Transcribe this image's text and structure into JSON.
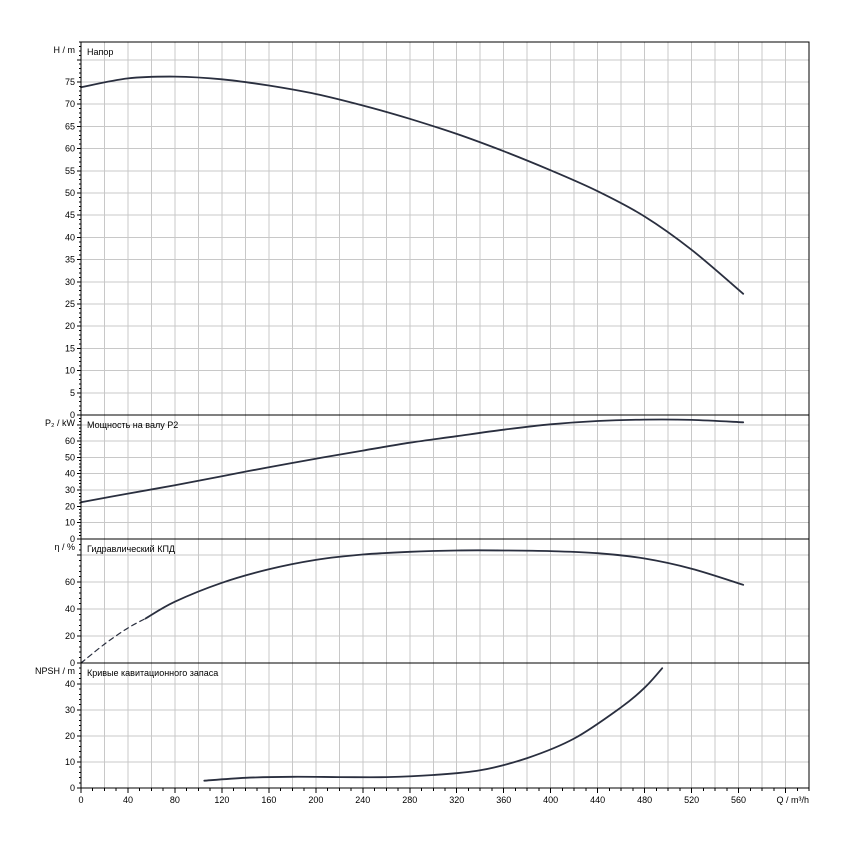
{
  "chart_data": {
    "type": "line",
    "xlabel": "Q / m³/h",
    "xlim": [
      0,
      620
    ],
    "xticks": [
      0,
      40,
      80,
      120,
      160,
      200,
      240,
      280,
      320,
      360,
      400,
      440,
      480,
      520,
      560
    ],
    "grid": true,
    "panels": [
      {
        "id": "head",
        "title": "Напор",
        "ylabel": "H / m",
        "ylim": [
          0,
          84
        ],
        "yticks": [
          0,
          5,
          10,
          15,
          20,
          25,
          30,
          35,
          40,
          45,
          50,
          55,
          60,
          65,
          70,
          75
        ],
        "series": [
          {
            "x": [
              0,
              40,
              80,
              120,
              160,
              200,
              240,
              280,
              320,
              360,
              400,
              440,
              480,
              520,
              564
            ],
            "y": [
              73.8,
              75.8,
              76.2,
              75.6,
              74.2,
              72.3,
              69.7,
              66.7,
              63.3,
              59.4,
              55.1,
              50.4,
              44.7,
              37.2,
              27.3
            ]
          }
        ]
      },
      {
        "id": "power",
        "title": "Мощность на валу P2",
        "ylabel": "P₂ / kW",
        "ylim": [
          0,
          76
        ],
        "yticks": [
          0,
          10,
          20,
          30,
          40,
          50,
          60
        ],
        "series": [
          {
            "x": [
              0,
              40,
              80,
              120,
              160,
              200,
              240,
              280,
              320,
              360,
              400,
              440,
              480,
              520,
              564
            ],
            "y": [
              22.5,
              27.8,
              33.0,
              38.5,
              44.0,
              49.2,
              54.2,
              59.0,
              63.0,
              67.0,
              70.3,
              72.3,
              73.2,
              73.0,
              71.5
            ]
          }
        ]
      },
      {
        "id": "efficiency",
        "title": "Гидравлический КПД",
        "ylabel": "η / %",
        "ylim": [
          0,
          92
        ],
        "yticks": [
          0,
          20,
          40,
          60
        ],
        "series": [
          {
            "style": "dashed",
            "x": [
              0,
              20,
              40,
              55
            ],
            "y": [
              0,
              14,
              26,
              33
            ]
          },
          {
            "x": [
              55,
              80,
              120,
              160,
              200,
              240,
              280,
              320,
              360,
              400,
              440,
              480,
              520,
              564
            ],
            "y": [
              33,
              45.5,
              59.5,
              69.5,
              76.5,
              80.5,
              82.5,
              83.5,
              83.5,
              83.0,
              81.5,
              77.5,
              70.0,
              58.0
            ]
          }
        ]
      },
      {
        "id": "npsh",
        "title": "Кривые кавитационного запаса",
        "ylabel": "NPSH / m",
        "ylim": [
          0,
          48
        ],
        "yticks": [
          0,
          10,
          20,
          30,
          40
        ],
        "series": [
          {
            "x": [
              105,
              140,
              180,
              220,
              260,
              300,
              340,
              380,
              420,
              460,
              480,
              495
            ],
            "y": [
              2.8,
              3.9,
              4.3,
              4.2,
              4.2,
              5.0,
              6.8,
              11.5,
              19.0,
              31.0,
              38.5,
              46.0
            ]
          }
        ]
      }
    ]
  }
}
